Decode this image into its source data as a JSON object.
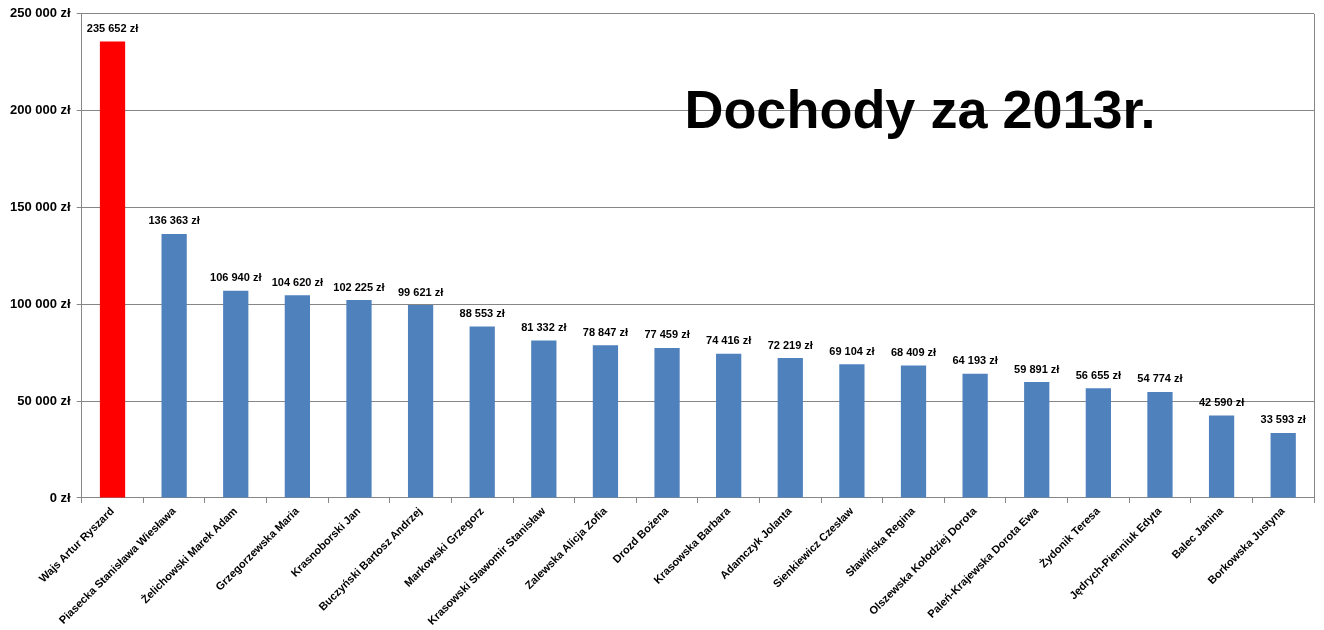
{
  "chart_data": {
    "type": "bar",
    "title": "Dochody za 2013r.",
    "categories": [
      "Wajs Artur Ryszard",
      "Piasecka Stanisława Wiesława",
      "Żelichowski Marek Adam",
      "Grzegorzewska Maria",
      "Krasnoborski Jan",
      "Buczyński Bartosz Andrzej",
      "Markowski Grzegorz",
      "Krasowski Sławomir Stanisław",
      "Zalewska Alicja Zofia",
      "Drozd Bożena",
      "Krasowska Barbara",
      "Adamczyk Jolanta",
      "Sienkiewicz Czesław",
      "Sławińska Regina",
      "Olszewska Kołodziej Dorota",
      "Paleń-Krajewska Dorota Ewa",
      "Żydonik Teresa",
      "Jędrych-Pienniuk Edyta",
      "Balec Janina",
      "Borkowska Justyna"
    ],
    "values": [
      235652,
      136363,
      106940,
      104620,
      102225,
      99621,
      88553,
      81332,
      78847,
      77459,
      74416,
      72219,
      69104,
      68409,
      64193,
      59891,
      56655,
      54774,
      42590,
      33593
    ],
    "colors": [
      "#ff0000",
      "#4f81bd",
      "#4f81bd",
      "#4f81bd",
      "#4f81bd",
      "#4f81bd",
      "#4f81bd",
      "#4f81bd",
      "#4f81bd",
      "#4f81bd",
      "#4f81bd",
      "#4f81bd",
      "#4f81bd",
      "#4f81bd",
      "#4f81bd",
      "#4f81bd",
      "#4f81bd",
      "#4f81bd",
      "#4f81bd",
      "#4f81bd"
    ],
    "value_labels": [
      "235 652 zł",
      "136 363 zł",
      "106 940 zł",
      "104 620 zł",
      "102 225 zł",
      "99 621 zł",
      "88 553 zł",
      "81 332 zł",
      "78 847 zł",
      "77 459 zł",
      "74 416 zł",
      "72 219 zł",
      "69 104 zł",
      "68 409 zł",
      "64 193 zł",
      "59 891 zł",
      "56 655 zł",
      "54 774 zł",
      "42 590 zł",
      "33 593 zł"
    ],
    "ylim": [
      0,
      250000
    ],
    "yticks": [
      {
        "value": 0,
        "label": "0 zł"
      },
      {
        "value": 50000,
        "label": "50 000 zł"
      },
      {
        "value": 100000,
        "label": "100 000 zł"
      },
      {
        "value": 150000,
        "label": "150 000 zł"
      },
      {
        "value": 200000,
        "label": "200 000 zł"
      },
      {
        "value": 250000,
        "label": "250 000 zł"
      }
    ],
    "grid": "y"
  }
}
